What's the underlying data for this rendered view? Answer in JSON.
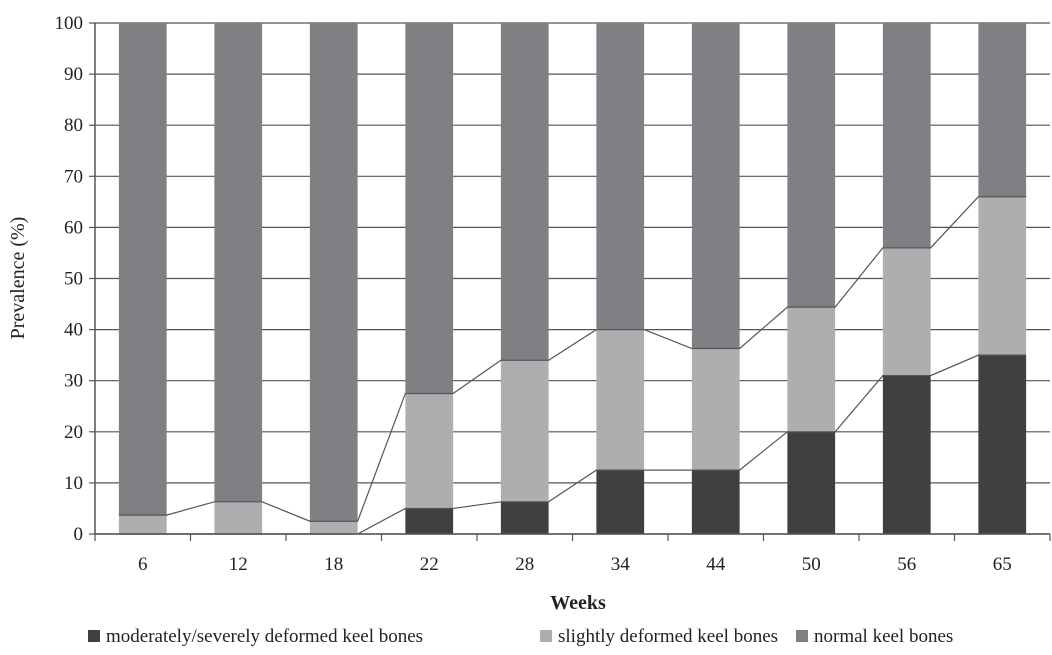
{
  "chart_data": {
    "type": "bar",
    "subtype": "stacked-100",
    "title": "",
    "xlabel": "Weeks",
    "ylabel": "Prevalence (%)",
    "ylim": [
      0,
      100
    ],
    "yticks": [
      0,
      10,
      20,
      30,
      40,
      50,
      60,
      70,
      80,
      90,
      100
    ],
    "grid": true,
    "legend_position": "bottom",
    "categories": [
      "6",
      "12",
      "18",
      "22",
      "28",
      "34",
      "44",
      "50",
      "56",
      "65"
    ],
    "series": [
      {
        "name": "moderately/severely deformed keel bones",
        "color": "#404040",
        "values": [
          0,
          0,
          0,
          5,
          6.3,
          12.5,
          12.5,
          20,
          31,
          35
        ]
      },
      {
        "name": "slightly deformed keel bones",
        "color": "#aeaeb0",
        "values": [
          3.7,
          6.3,
          2.5,
          22.5,
          27.7,
          27.5,
          23.8,
          24.4,
          25,
          31
        ]
      },
      {
        "name": "normal keel bones",
        "color": "#808084",
        "values": [
          96.3,
          93.7,
          97.5,
          72.5,
          66,
          60,
          63.7,
          55.6,
          44,
          34
        ]
      }
    ],
    "series_lines": true
  }
}
